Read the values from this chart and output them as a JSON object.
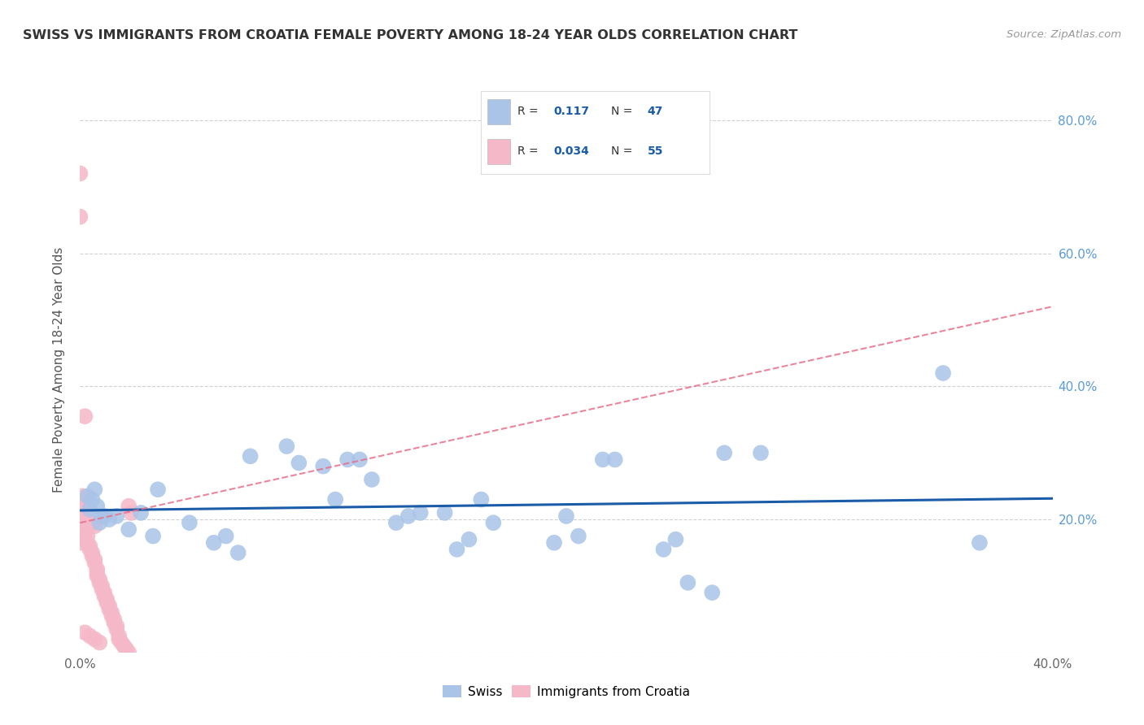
{
  "title": "SWISS VS IMMIGRANTS FROM CROATIA FEMALE POVERTY AMONG 18-24 YEAR OLDS CORRELATION CHART",
  "source": "Source: ZipAtlas.com",
  "ylabel": "Female Poverty Among 18-24 Year Olds",
  "xlim": [
    0.0,
    0.4
  ],
  "ylim": [
    0.0,
    0.85
  ],
  "swiss_color": "#aac4e8",
  "croatia_color": "#f5b8c8",
  "swiss_line_color": "#1a5ca8",
  "croatia_line_color": "#e8708a",
  "background_color": "#ffffff",
  "grid_color": "#cccccc",
  "swiss_x": [
    0.003,
    0.004,
    0.005,
    0.006,
    0.007,
    0.008,
    0.009,
    0.01,
    0.012,
    0.015,
    0.02,
    0.025,
    0.03,
    0.032,
    0.045,
    0.055,
    0.06,
    0.065,
    0.07,
    0.085,
    0.09,
    0.1,
    0.105,
    0.11,
    0.115,
    0.12,
    0.13,
    0.135,
    0.14,
    0.15,
    0.155,
    0.16,
    0.165,
    0.17,
    0.195,
    0.2,
    0.205,
    0.215,
    0.22,
    0.24,
    0.245,
    0.25,
    0.26,
    0.265,
    0.28,
    0.355,
    0.37
  ],
  "swiss_y": [
    0.235,
    0.215,
    0.23,
    0.245,
    0.22,
    0.195,
    0.205,
    0.205,
    0.2,
    0.205,
    0.185,
    0.21,
    0.175,
    0.245,
    0.195,
    0.165,
    0.175,
    0.15,
    0.295,
    0.31,
    0.285,
    0.28,
    0.23,
    0.29,
    0.29,
    0.26,
    0.195,
    0.205,
    0.21,
    0.21,
    0.155,
    0.17,
    0.23,
    0.195,
    0.165,
    0.205,
    0.175,
    0.29,
    0.29,
    0.155,
    0.17,
    0.105,
    0.09,
    0.3,
    0.3,
    0.42,
    0.165
  ],
  "croatia_x": [
    0.0,
    0.0,
    0.001,
    0.001,
    0.001,
    0.001,
    0.002,
    0.002,
    0.003,
    0.003,
    0.003,
    0.004,
    0.004,
    0.005,
    0.005,
    0.006,
    0.006,
    0.007,
    0.007,
    0.007,
    0.008,
    0.008,
    0.009,
    0.009,
    0.01,
    0.01,
    0.011,
    0.011,
    0.012,
    0.012,
    0.013,
    0.013,
    0.014,
    0.014,
    0.015,
    0.015,
    0.016,
    0.016,
    0.017,
    0.018,
    0.019,
    0.02,
    0.02,
    0.021,
    0.002,
    0.003,
    0.005,
    0.006,
    0.001,
    0.002,
    0.004,
    0.006,
    0.008,
    0.001,
    0.0
  ],
  "croatia_y": [
    0.72,
    0.655,
    0.235,
    0.225,
    0.215,
    0.205,
    0.2,
    0.195,
    0.185,
    0.175,
    0.165,
    0.16,
    0.155,
    0.15,
    0.145,
    0.14,
    0.135,
    0.125,
    0.12,
    0.115,
    0.11,
    0.105,
    0.1,
    0.095,
    0.09,
    0.085,
    0.08,
    0.075,
    0.07,
    0.065,
    0.06,
    0.055,
    0.05,
    0.045,
    0.04,
    0.035,
    0.025,
    0.02,
    0.015,
    0.01,
    0.005,
    0.0,
    0.22,
    0.21,
    0.355,
    0.2,
    0.195,
    0.19,
    0.185,
    0.03,
    0.025,
    0.02,
    0.015,
    0.17,
    0.165
  ],
  "legend_r_swiss": "0.117",
  "legend_n_swiss": "47",
  "legend_r_croatia": "0.034",
  "legend_n_croatia": "55"
}
